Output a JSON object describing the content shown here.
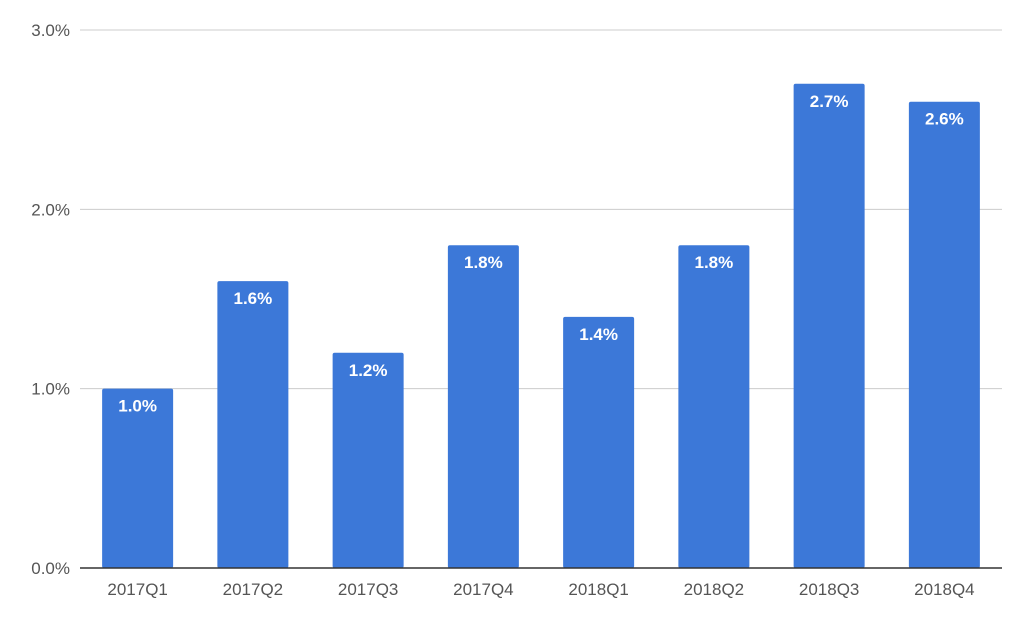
{
  "chart_data": {
    "type": "bar",
    "title": "",
    "xlabel": "",
    "ylabel": "",
    "categories": [
      "2017Q1",
      "2017Q2",
      "2017Q3",
      "2017Q4",
      "2018Q1",
      "2018Q2",
      "2018Q3",
      "2018Q4"
    ],
    "values": [
      1.0,
      1.6,
      1.2,
      1.8,
      1.4,
      1.8,
      2.7,
      2.6
    ],
    "data_labels": [
      "1.0%",
      "1.6%",
      "1.2%",
      "1.8%",
      "1.4%",
      "1.8%",
      "2.7%",
      "2.6%"
    ],
    "ylim": [
      0,
      3.0
    ],
    "y_ticks": [
      0,
      1.0,
      2.0,
      3.0
    ],
    "y_tick_labels": [
      "0.0%",
      "1.0%",
      "2.0%",
      "3.0%"
    ],
    "grid": true,
    "legend": "none",
    "bar_color": "#3c78d8"
  }
}
